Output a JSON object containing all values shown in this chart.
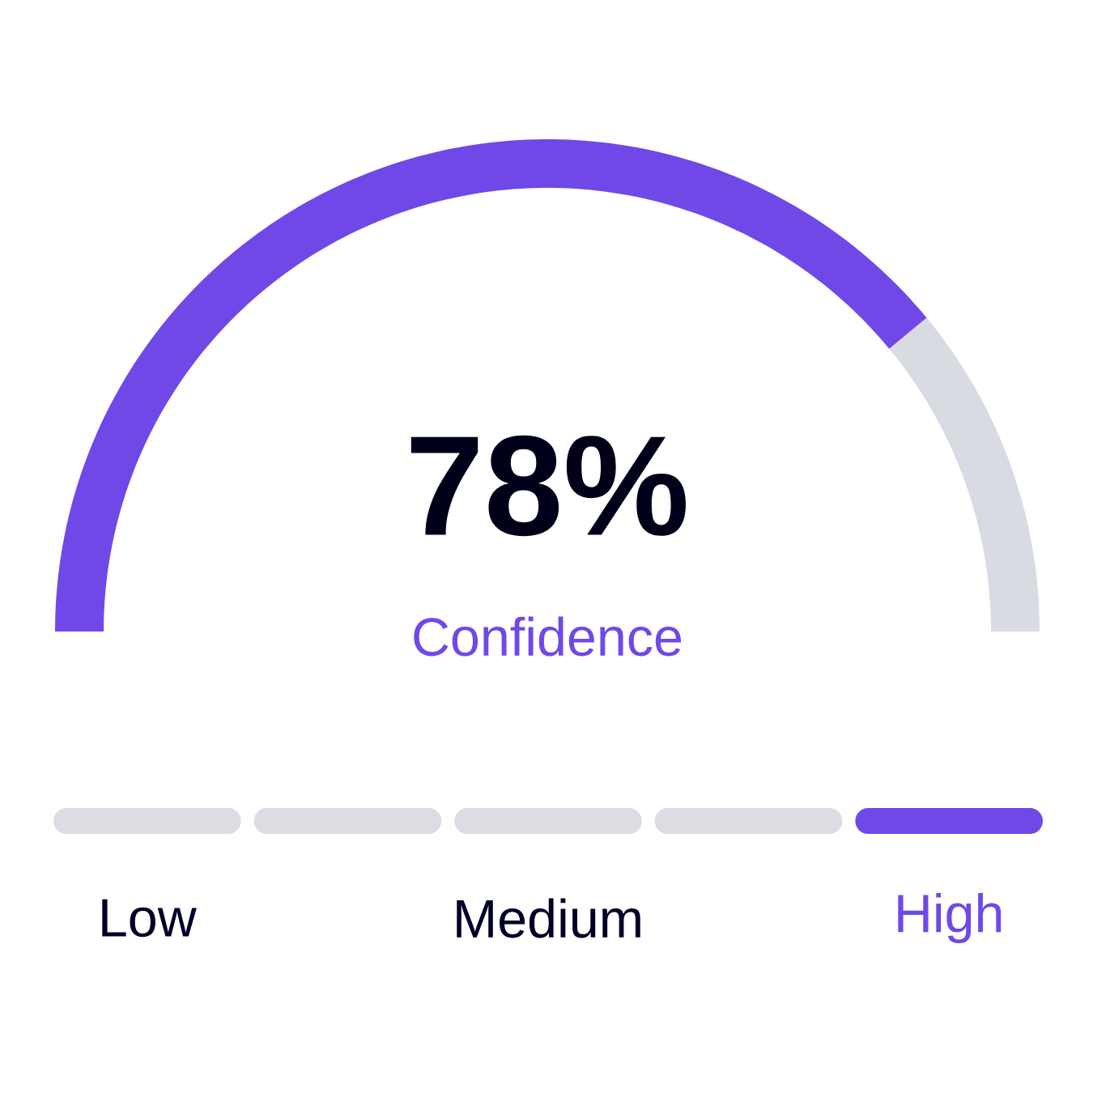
{
  "chart_data": [
    {
      "type": "donut",
      "categories": [
        null,
        null
      ],
      "values": [
        78,
        22
      ],
      "colors": [
        "#7048e8",
        "#d9dbe3"
      ],
      "value_labels": [
        "78%",
        null
      ],
      "annotations": [
        "Confidence"
      ]
    },
    {
      "type": "other",
      "categories": [
        "Low",
        null,
        "Medium",
        null,
        "High"
      ],
      "colors": [
        "#dcdde3",
        "#dcdde3",
        "#dcdde3",
        "#dcdde3",
        "#7048e8"
      ]
    }
  ]
}
